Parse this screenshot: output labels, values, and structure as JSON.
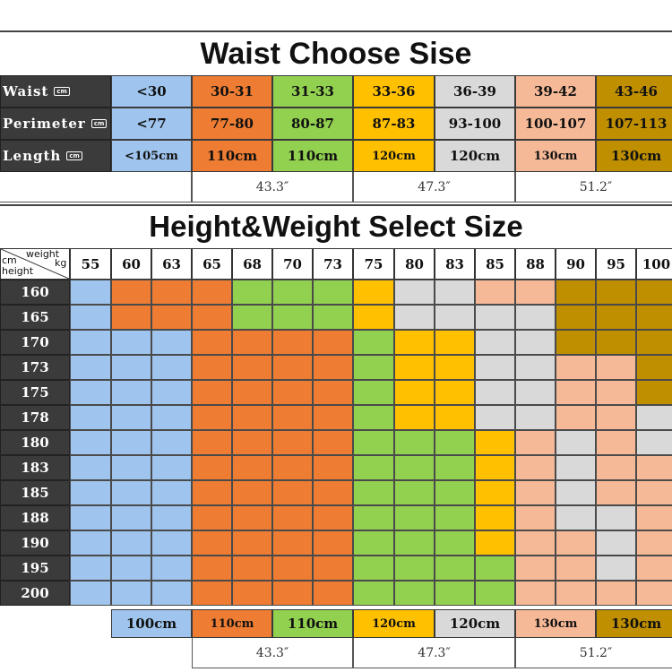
{
  "colors": {
    "blue": "#9fc5ee",
    "orange": "#ee7d33",
    "green": "#92d050",
    "yellow": "#ffc000",
    "grey": "#d9d9d9",
    "peach": "#f6b997",
    "gold": "#bf8f00",
    "dark": "#3b3b3b"
  },
  "waist_section": {
    "title": "Waist Choose Sise",
    "rows": [
      {
        "label": "Waist",
        "unit": "cm",
        "values": [
          "<30",
          "30-31",
          "31-33",
          "33-36",
          "36-39",
          "39-42",
          "43-46"
        ]
      },
      {
        "label": "Perimeter",
        "unit": "cm",
        "values": [
          "<77",
          "77-80",
          "80-87",
          "87-83",
          "93-100",
          "100-107",
          "107-113"
        ]
      },
      {
        "label": "Length",
        "unit": "cm",
        "values": [
          "<105cm",
          "110cm",
          "110cm",
          "120cm",
          "120cm",
          "130cm",
          "130cm"
        ]
      }
    ],
    "inch_labels": [
      "43.3″",
      "47.3″",
      "51.2″"
    ]
  },
  "height_weight_section": {
    "title": "Height&Weight Select Size",
    "corner": {
      "weight": "weight",
      "kg": "kg",
      "cm": "cm",
      "height": "height"
    },
    "weights": [
      "55",
      "60",
      "63",
      "65",
      "68",
      "70",
      "73",
      "75",
      "80",
      "83",
      "85",
      "88",
      "90",
      "95",
      "100"
    ],
    "heights": [
      "160",
      "165",
      "170",
      "173",
      "175",
      "178",
      "180",
      "183",
      "185",
      "188",
      "190",
      "195",
      "200"
    ],
    "grid": [
      [
        "blue",
        "orange",
        "orange",
        "orange",
        "green",
        "green",
        "green",
        "yellow",
        "grey",
        "grey",
        "peach",
        "peach",
        "gold",
        "gold",
        "gold"
      ],
      [
        "blue",
        "orange",
        "orange",
        "orange",
        "green",
        "green",
        "green",
        "yellow",
        "grey",
        "grey",
        "grey",
        "grey",
        "gold",
        "gold",
        "gold"
      ],
      [
        "blue",
        "blue",
        "blue",
        "orange",
        "orange",
        "orange",
        "orange",
        "green",
        "yellow",
        "yellow",
        "grey",
        "grey",
        "gold",
        "gold",
        "gold"
      ],
      [
        "blue",
        "blue",
        "blue",
        "orange",
        "orange",
        "orange",
        "orange",
        "green",
        "yellow",
        "yellow",
        "grey",
        "grey",
        "peach",
        "peach",
        "gold"
      ],
      [
        "blue",
        "blue",
        "blue",
        "orange",
        "orange",
        "orange",
        "orange",
        "green",
        "yellow",
        "yellow",
        "grey",
        "grey",
        "peach",
        "peach",
        "gold"
      ],
      [
        "blue",
        "blue",
        "blue",
        "orange",
        "orange",
        "orange",
        "orange",
        "green",
        "yellow",
        "yellow",
        "grey",
        "grey",
        "peach",
        "peach",
        "grey"
      ],
      [
        "blue",
        "blue",
        "blue",
        "orange",
        "orange",
        "orange",
        "orange",
        "green",
        "green",
        "green",
        "yellow",
        "peach",
        "grey",
        "peach",
        "grey"
      ],
      [
        "blue",
        "blue",
        "blue",
        "orange",
        "orange",
        "orange",
        "orange",
        "green",
        "green",
        "green",
        "yellow",
        "peach",
        "grey",
        "peach",
        "peach"
      ],
      [
        "blue",
        "blue",
        "blue",
        "orange",
        "orange",
        "orange",
        "orange",
        "green",
        "green",
        "green",
        "yellow",
        "peach",
        "grey",
        "peach",
        "peach"
      ],
      [
        "blue",
        "blue",
        "blue",
        "orange",
        "orange",
        "orange",
        "orange",
        "green",
        "green",
        "green",
        "yellow",
        "peach",
        "grey",
        "grey",
        "peach"
      ],
      [
        "blue",
        "blue",
        "blue",
        "orange",
        "orange",
        "orange",
        "orange",
        "green",
        "green",
        "green",
        "yellow",
        "peach",
        "peach",
        "grey",
        "peach"
      ],
      [
        "blue",
        "blue",
        "blue",
        "orange",
        "orange",
        "orange",
        "orange",
        "green",
        "green",
        "green",
        "green",
        "peach",
        "peach",
        "grey",
        "peach"
      ],
      [
        "blue",
        "blue",
        "blue",
        "orange",
        "orange",
        "orange",
        "orange",
        "green",
        "green",
        "green",
        "green",
        "peach",
        "peach",
        "peach",
        "peach"
      ]
    ],
    "length_row": [
      {
        "text": "100cm",
        "color": "blue"
      },
      {
        "text": "110cm",
        "color": "orange"
      },
      {
        "text": "110cm",
        "color": "green"
      },
      {
        "text": "120cm",
        "color": "yellow"
      },
      {
        "text": "120cm",
        "color": "grey"
      },
      {
        "text": "130cm",
        "color": "peach"
      },
      {
        "text": "130cm",
        "color": "gold"
      }
    ],
    "inch_labels": [
      "43.3″",
      "47.3″",
      "51.2″"
    ]
  }
}
